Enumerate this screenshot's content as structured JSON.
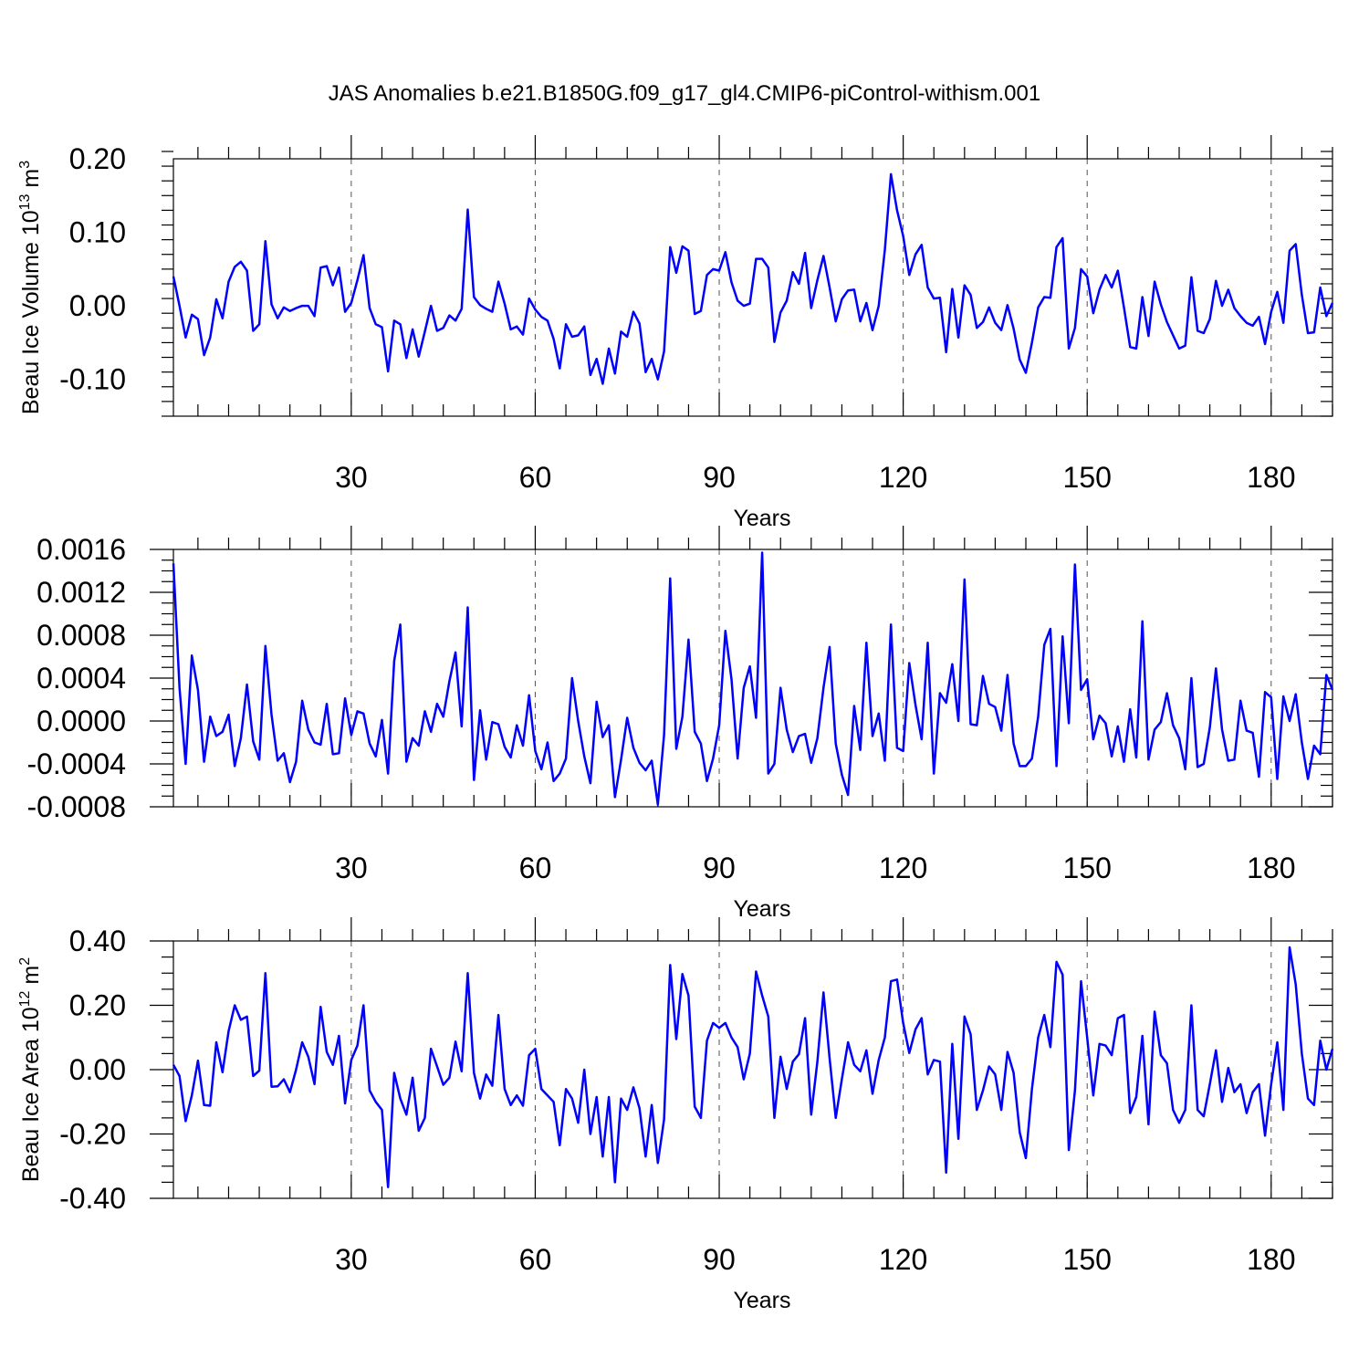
{
  "chart_data": [
    {
      "type": "line",
      "title": "JAS Anomalies b.e21.B1850G.f09_g17_gl4.CMIP6-piControl-withism.001",
      "xlabel": "Years",
      "ylabel_main": "Beau Ice Volume 10",
      "ylabel_exp": "13",
      "ylabel_unit": " m",
      "ylabel_unit_exp": "3",
      "xlim": [
        1,
        190
      ],
      "ylim": [
        -0.15,
        0.2
      ],
      "xticks": [
        30,
        60,
        90,
        120,
        150,
        180
      ],
      "yticks": [
        -0.1,
        0.0,
        0.1,
        0.2
      ],
      "ytick_labels": [
        "-0.10",
        "0.00",
        "0.10",
        "0.20"
      ],
      "y_minor_step": 0.02,
      "grid": "x-dashed",
      "color": "#0000ff",
      "series": [
        {
          "values": [
            0.04,
            0.0,
            -0.043,
            -0.012,
            -0.018,
            -0.067,
            -0.043,
            0.009,
            -0.017,
            0.033,
            0.053,
            0.06,
            0.048,
            -0.034,
            -0.025,
            0.088,
            0.002,
            -0.017,
            -0.002,
            -0.007,
            -0.003,
            0.0,
            0.0,
            -0.014,
            0.052,
            0.054,
            0.028,
            0.052,
            -0.008,
            0.004,
            0.035,
            0.069,
            -0.003,
            -0.025,
            -0.029,
            -0.089,
            -0.02,
            -0.025,
            -0.071,
            -0.032,
            -0.069,
            -0.035,
            0.0,
            -0.034,
            -0.03,
            -0.013,
            -0.02,
            -0.004,
            0.131,
            0.012,
            0.001,
            -0.004,
            -0.008,
            0.033,
            0.003,
            -0.032,
            -0.028,
            -0.039,
            0.01,
            -0.005,
            -0.015,
            -0.02,
            -0.045,
            -0.085,
            -0.025,
            -0.042,
            -0.04,
            -0.028,
            -0.094,
            -0.072,
            -0.106,
            -0.058,
            -0.092,
            -0.035,
            -0.042,
            -0.008,
            -0.024,
            -0.09,
            -0.072,
            -0.1,
            -0.062,
            0.08,
            0.045,
            0.081,
            0.075,
            -0.011,
            -0.007,
            0.042,
            0.05,
            0.048,
            0.073,
            0.032,
            0.007,
            0.0,
            0.003,
            0.064,
            0.064,
            0.052,
            -0.049,
            -0.009,
            0.007,
            0.046,
            0.03,
            0.072,
            -0.003,
            0.035,
            0.068,
            0.025,
            -0.021,
            0.009,
            0.021,
            0.022,
            -0.021,
            0.004,
            -0.033,
            0.0,
            0.076,
            0.179,
            0.13,
            0.095,
            0.042,
            0.07,
            0.083,
            0.025,
            0.01,
            0.011,
            -0.063,
            0.023,
            -0.043,
            0.028,
            0.015,
            -0.03,
            -0.022,
            -0.002,
            -0.023,
            -0.033,
            0.001,
            -0.031,
            -0.073,
            -0.091,
            -0.05,
            -0.002,
            0.012,
            0.011,
            0.08,
            0.092,
            -0.058,
            -0.03,
            0.05,
            0.04,
            -0.01,
            0.022,
            0.042,
            0.025,
            0.048,
            -0.002,
            -0.056,
            -0.058,
            0.012,
            -0.041,
            0.033,
            0.002,
            -0.022,
            -0.04,
            -0.058,
            -0.054,
            0.039,
            -0.034,
            -0.037,
            -0.018,
            0.034,
            0.0,
            0.022,
            -0.003,
            -0.014,
            -0.023,
            -0.027,
            -0.015,
            -0.052,
            -0.008,
            0.019,
            -0.023,
            0.075,
            0.084,
            0.015,
            -0.037,
            -0.036,
            0.025,
            -0.014,
            0.004
          ]
        }
      ]
    },
    {
      "type": "line",
      "xlabel": "Years",
      "xlim": [
        1,
        190
      ],
      "ylim": [
        -0.0008,
        0.0016
      ],
      "xticks": [
        30,
        60,
        90,
        120,
        150,
        180
      ],
      "yticks": [
        -0.0008,
        -0.0004,
        0.0,
        0.0004,
        0.0008,
        0.0012,
        0.0016
      ],
      "ytick_labels": [
        "-0.0008",
        "-0.0004",
        "0.0000",
        "0.0004",
        "0.0008",
        "0.0012",
        "0.0016"
      ],
      "y_minor_step": 0.0001,
      "grid": "x-dashed",
      "color": "#0000ff",
      "series": [
        {
          "values": [
            0.00147,
            0.00031,
            -0.0004,
            0.00061,
            0.00029,
            -0.00038,
            4e-05,
            -0.00014,
            -0.0001,
            6e-05,
            -0.00042,
            -0.00016,
            0.00034,
            -0.00019,
            -0.00036,
            0.0007,
            6e-05,
            -0.00037,
            -0.0003,
            -0.00057,
            -0.00038,
            0.00019,
            -8e-05,
            -0.0002,
            -0.00022,
            0.00016,
            -0.00031,
            -0.0003,
            0.00021,
            -0.00013,
            9e-05,
            7e-05,
            -0.00021,
            -0.00033,
            1e-05,
            -0.00049,
            0.00056,
            0.0009,
            -0.00038,
            -0.00016,
            -0.00023,
            9e-05,
            -0.0001,
            0.00016,
            4e-05,
            0.00037,
            0.00064,
            -5e-05,
            0.00106,
            -0.00055,
            0.0001,
            -0.00036,
            -1e-05,
            -3e-05,
            -0.00024,
            -0.00034,
            -4e-05,
            -0.00023,
            0.00024,
            -0.00028,
            -0.00045,
            -0.0002,
            -0.00056,
            -0.00049,
            -0.00035,
            0.0004,
            0.0,
            -0.00033,
            -0.00058,
            0.00018,
            -0.00015,
            -4e-05,
            -0.00071,
            -0.00036,
            3e-05,
            -0.00025,
            -0.00039,
            -0.00046,
            -0.00037,
            -0.00078,
            -0.00013,
            0.00133,
            -0.00026,
            4e-05,
            0.00076,
            -0.0001,
            -0.00021,
            -0.00056,
            -0.00035,
            -4e-05,
            0.00084,
            0.00039,
            -0.00035,
            0.00031,
            0.00051,
            3e-05,
            0.00157,
            -0.00049,
            -0.0004,
            0.00031,
            -8e-05,
            -0.00029,
            -0.00014,
            -0.00012,
            -0.00039,
            -0.00016,
            0.00031,
            0.00069,
            -0.00021,
            -0.0005,
            -0.00069,
            0.00014,
            -0.00027,
            0.00073,
            -0.00014,
            7e-05,
            -0.00037,
            0.0009,
            -0.00025,
            -0.00028,
            0.00054,
            0.00015,
            -0.00017,
            0.00073,
            -0.00049,
            0.00026,
            0.00017,
            0.00053,
            0.0,
            0.00132,
            -3e-05,
            -4e-05,
            0.00042,
            0.00016,
            0.00013,
            -9e-05,
            0.00043,
            -0.00021,
            -0.00042,
            -0.00042,
            -0.00035,
            4e-05,
            0.00071,
            0.00086,
            -0.00042,
            0.00079,
            -2e-05,
            0.00146,
            0.00029,
            0.00039,
            -0.00017,
            5e-05,
            -2e-05,
            -0.00033,
            -5e-05,
            -0.00038,
            0.00011,
            -0.00034,
            0.00093,
            -0.00036,
            -8e-05,
            -1e-05,
            0.00026,
            -4e-05,
            -0.00016,
            -0.00045,
            0.0004,
            -0.00043,
            -0.0004,
            -6e-05,
            0.00049,
            -8e-05,
            -0.00037,
            -0.00036,
            0.00019,
            -9e-05,
            -0.00011,
            -0.00052,
            0.00027,
            0.00022,
            -0.00054,
            0.00023,
            0.0,
            0.00025,
            -0.0002,
            -0.00054,
            -0.00023,
            -0.00031,
            0.00043,
            0.00029
          ]
        }
      ]
    },
    {
      "type": "line",
      "xlabel": "Years",
      "ylabel_main": "Beau Ice Area 10",
      "ylabel_exp": "12",
      "ylabel_unit": " m",
      "ylabel_unit_exp": "2",
      "xlim": [
        1,
        190
      ],
      "ylim": [
        -0.4,
        0.4
      ],
      "xticks": [
        30,
        60,
        90,
        120,
        150,
        180
      ],
      "yticks": [
        -0.4,
        -0.2,
        0.0,
        0.2,
        0.4
      ],
      "ytick_labels": [
        "-0.40",
        "-0.20",
        "0.00",
        "0.20",
        "0.40"
      ],
      "y_minor_step": 0.05,
      "grid": "x-dashed",
      "color": "#0000ff",
      "series": [
        {
          "values": [
            0.015,
            -0.02,
            -0.16,
            -0.08,
            0.028,
            -0.11,
            -0.112,
            0.085,
            -0.008,
            0.12,
            0.2,
            0.155,
            0.165,
            -0.02,
            -0.003,
            0.3,
            -0.053,
            -0.052,
            -0.03,
            -0.07,
            0.0,
            0.085,
            0.04,
            -0.045,
            0.195,
            0.055,
            0.015,
            0.105,
            -0.105,
            0.03,
            0.075,
            0.2,
            -0.065,
            -0.1,
            -0.125,
            -0.365,
            -0.01,
            -0.09,
            -0.14,
            -0.025,
            -0.19,
            -0.15,
            0.065,
            0.01,
            -0.047,
            -0.025,
            0.087,
            -0.005,
            0.3,
            -0.01,
            -0.09,
            -0.015,
            -0.05,
            0.17,
            -0.06,
            -0.11,
            -0.08,
            -0.112,
            0.045,
            0.065,
            -0.06,
            -0.08,
            -0.1,
            -0.235,
            -0.06,
            -0.09,
            -0.165,
            0.0,
            -0.2,
            -0.085,
            -0.27,
            -0.085,
            -0.35,
            -0.09,
            -0.125,
            -0.055,
            -0.12,
            -0.27,
            -0.11,
            -0.29,
            -0.155,
            0.325,
            0.095,
            0.297,
            0.23,
            -0.115,
            -0.15,
            0.09,
            0.145,
            0.13,
            0.145,
            0.1,
            0.07,
            -0.03,
            0.05,
            0.305,
            0.23,
            0.165,
            -0.15,
            0.04,
            -0.06,
            0.025,
            0.048,
            0.16,
            -0.14,
            0.025,
            0.24,
            0.035,
            -0.15,
            -0.03,
            0.085,
            0.015,
            -0.005,
            0.06,
            -0.075,
            0.03,
            0.1,
            0.275,
            0.28,
            0.145,
            0.052,
            0.125,
            0.16,
            -0.015,
            0.03,
            0.025,
            -0.32,
            0.08,
            -0.215,
            0.165,
            0.11,
            -0.125,
            -0.065,
            0.01,
            -0.015,
            -0.125,
            0.055,
            -0.01,
            -0.195,
            -0.275,
            -0.06,
            0.1,
            0.17,
            0.07,
            0.335,
            0.295,
            -0.25,
            -0.065,
            0.275,
            0.1,
            -0.08,
            0.08,
            0.075,
            0.045,
            0.16,
            0.17,
            -0.135,
            -0.085,
            0.105,
            -0.17,
            0.18,
            0.045,
            0.02,
            -0.125,
            -0.165,
            -0.125,
            0.2,
            -0.125,
            -0.145,
            -0.045,
            0.06,
            -0.1,
            0.005,
            -0.07,
            -0.045,
            -0.135,
            -0.07,
            -0.045,
            -0.205,
            -0.045,
            0.085,
            -0.125,
            0.38,
            0.265,
            0.05,
            -0.09,
            -0.11,
            0.09,
            0.0,
            0.065
          ]
        }
      ]
    }
  ]
}
